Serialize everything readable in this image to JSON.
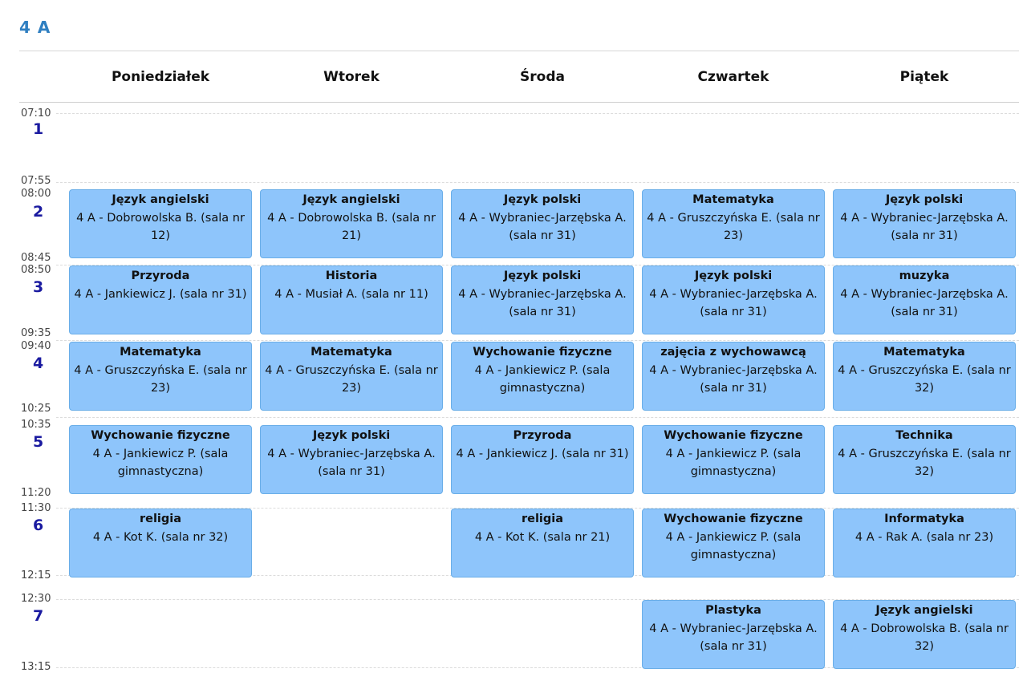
{
  "class_title": "4 A",
  "days": [
    "Poniedziałek",
    "Wtorek",
    "Środa",
    "Czwartek",
    "Piątek"
  ],
  "periods": [
    {
      "num": "1",
      "start": "07:10",
      "end": "07:55"
    },
    {
      "num": "2",
      "start": "08:00",
      "end": "08:45"
    },
    {
      "num": "3",
      "start": "08:50",
      "end": "09:35"
    },
    {
      "num": "4",
      "start": "09:40",
      "end": "10:25"
    },
    {
      "num": "5",
      "start": "10:35",
      "end": "11:20"
    },
    {
      "num": "6",
      "start": "11:30",
      "end": "12:15"
    },
    {
      "num": "7",
      "start": "12:30",
      "end": "13:15"
    }
  ],
  "lessons": {
    "p2": [
      {
        "subject": "Język angielski",
        "detail": "4 A - Dobrowolska B. (sala nr 12)"
      },
      {
        "subject": "Język angielski",
        "detail": "4 A - Dobrowolska B. (sala nr 21)"
      },
      {
        "subject": "Język polski",
        "detail": "4 A - Wybraniec-Jarzębska A. (sala nr 31)"
      },
      {
        "subject": "Matematyka",
        "detail": "4 A - Gruszczyńska E. (sala nr 23)"
      },
      {
        "subject": "Język polski",
        "detail": "4 A - Wybraniec-Jarzębska A. (sala nr 31)"
      }
    ],
    "p3": [
      {
        "subject": "Przyroda",
        "detail": "4 A - Jankiewicz J. (sala nr 31)"
      },
      {
        "subject": "Historia",
        "detail": "4 A - Musiał A. (sala nr 11)"
      },
      {
        "subject": "Język polski",
        "detail": "4 A - Wybraniec-Jarzębska A. (sala nr 31)"
      },
      {
        "subject": "Język polski",
        "detail": "4 A - Wybraniec-Jarzębska A. (sala nr 31)"
      },
      {
        "subject": "muzyka",
        "detail": "4 A - Wybraniec-Jarzębska A. (sala nr 31)"
      }
    ],
    "p4": [
      {
        "subject": "Matematyka",
        "detail": "4 A - Gruszczyńska E. (sala nr 23)"
      },
      {
        "subject": "Matematyka",
        "detail": "4 A - Gruszczyńska E. (sala nr 23)"
      },
      {
        "subject": "Wychowanie fizyczne",
        "detail": "4 A - Jankiewicz P. (sala gimnastyczna)"
      },
      {
        "subject": "zajęcia z wychowawcą",
        "detail": "4 A - Wybraniec-Jarzębska A. (sala nr 31)"
      },
      {
        "subject": "Matematyka",
        "detail": "4 A - Gruszczyńska E. (sala nr 32)"
      }
    ],
    "p5": [
      {
        "subject": "Wychowanie fizyczne",
        "detail": "4 A - Jankiewicz P. (sala gimnastyczna)"
      },
      {
        "subject": "Język polski",
        "detail": "4 A - Wybraniec-Jarzębska A. (sala nr 31)"
      },
      {
        "subject": "Przyroda",
        "detail": "4 A - Jankiewicz J. (sala nr 31)"
      },
      {
        "subject": "Wychowanie fizyczne",
        "detail": "4 A - Jankiewicz P. (sala gimnastyczna)"
      },
      {
        "subject": "Technika",
        "detail": "4 A - Gruszczyńska E. (sala nr 32)"
      }
    ],
    "p6": [
      {
        "subject": "religia",
        "detail": "4 A - Kot K. (sala nr 32)"
      },
      {
        "subject": "religia",
        "detail": "4 A - Kot K. (sala nr 21)"
      },
      {
        "subject": "Wychowanie fizyczne",
        "detail": "4 A - Jankiewicz P. (sala gimnastyczna)"
      },
      {
        "subject": "Informatyka",
        "detail": "4 A - Rak A. (sala nr 23)"
      }
    ],
    "p7": [
      {
        "subject": "Plastyka",
        "detail": "4 A - Wybraniec-Jarzębska A. (sala nr 31)"
      },
      {
        "subject": "Język angielski",
        "detail": "4 A - Dobrowolska B. (sala nr 32)"
      }
    ]
  }
}
